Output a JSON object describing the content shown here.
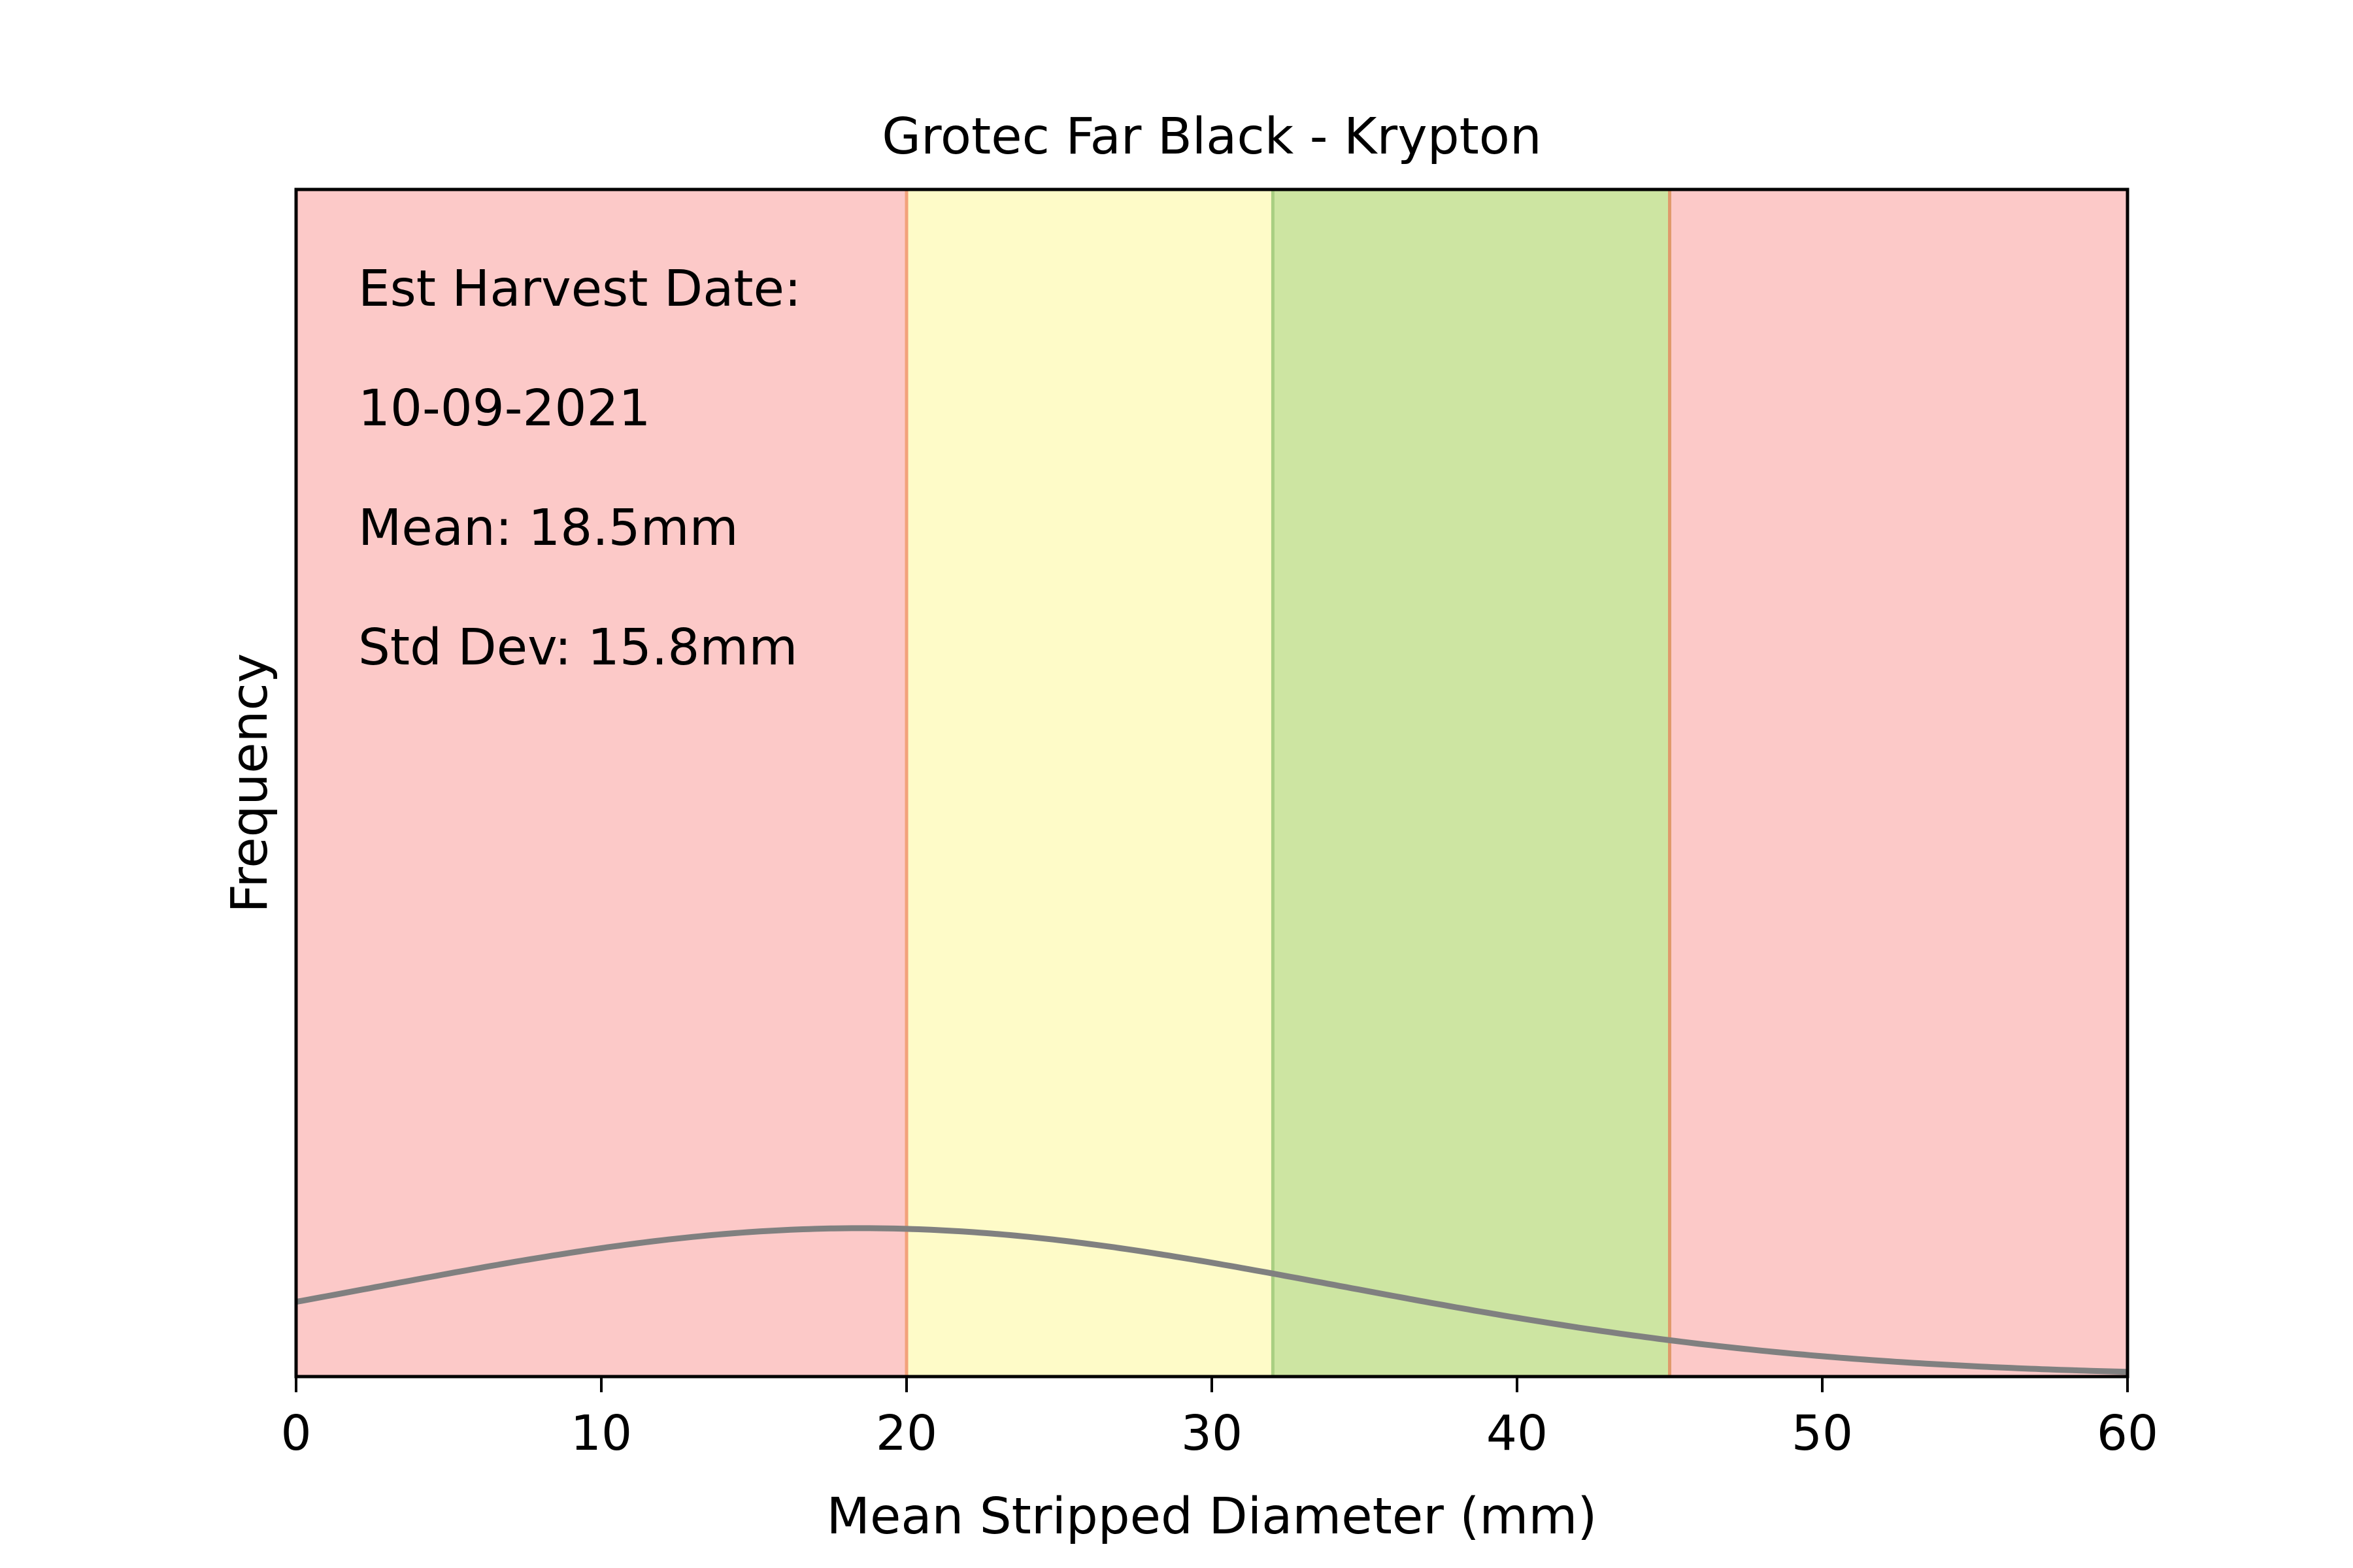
{
  "chart_data": {
    "type": "line",
    "title": "Grotec Far Black - Krypton",
    "xlabel": "Mean Stripped Diameter (mm)",
    "ylabel": "Frequency",
    "xlim": [
      0,
      60
    ],
    "ylim": [
      0,
      1
    ],
    "grid": false,
    "x_ticks": [
      0,
      10,
      20,
      30,
      40,
      50,
      60
    ],
    "y_ticks": [],
    "bands": [
      {
        "from": 0,
        "to": 20,
        "color": "#fcc9c8"
      },
      {
        "from": 20,
        "to": 32,
        "color": "#fefbc8"
      },
      {
        "from": 32,
        "to": 45,
        "color": "#cde5a2"
      },
      {
        "from": 45,
        "to": 60,
        "color": "#fcc9c8"
      }
    ],
    "boundary_lines": [
      {
        "x": 20,
        "color": "#f2a27a"
      },
      {
        "x": 32,
        "color": "#a9cf82"
      },
      {
        "x": 45,
        "color": "#e09a6c"
      }
    ],
    "series": [
      {
        "kind": "normal-curve",
        "mean": 18.5,
        "std": 15.8,
        "peak": 0.125,
        "color": "#808080"
      }
    ],
    "annotations": [
      "Est Harvest Date:",
      "10-09-2021",
      "Mean: 18.5mm",
      "Std Dev: 15.8mm"
    ]
  }
}
